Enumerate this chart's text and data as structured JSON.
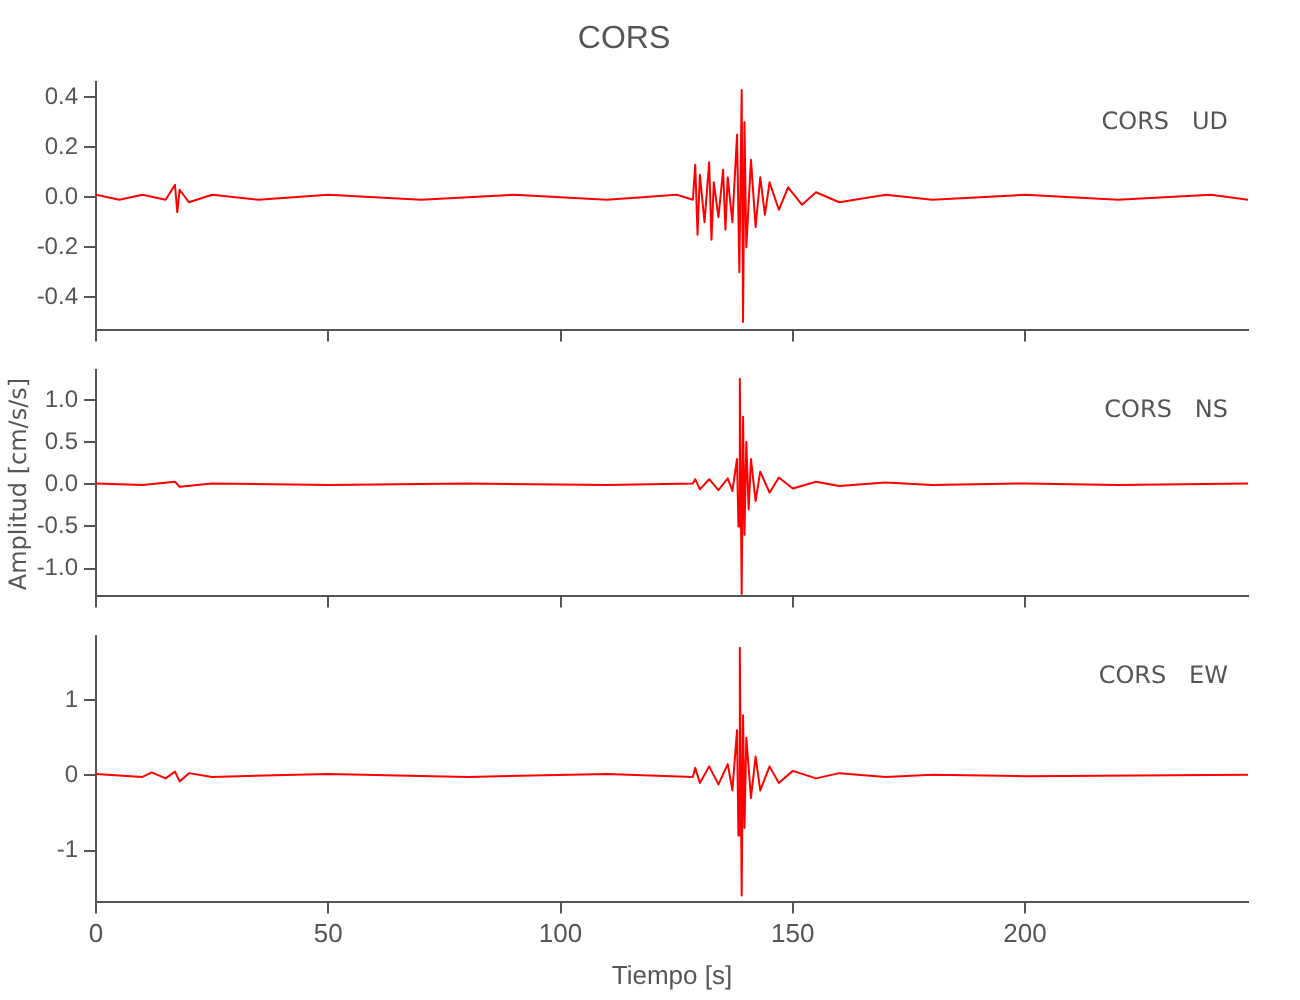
{
  "chart_data": [
    {
      "type": "line",
      "title": "CORS",
      "annotations": [
        "CORS   UD"
      ],
      "xlim": [
        0,
        248
      ],
      "xticks": [
        0,
        50,
        100,
        150,
        200
      ],
      "ylim": [
        -0.53,
        0.46
      ],
      "yticks": [
        0.4,
        0.2,
        {
          "value": 0,
          "label": "0.0"
        },
        -0.2,
        -0.4
      ],
      "tick_labels": "y",
      "grid": false,
      "legend": false,
      "series": [
        {
          "color": "#ff0000",
          "x": [
            0,
            5,
            10,
            15,
            17,
            17.5,
            18,
            20,
            25,
            35,
            50,
            70,
            90,
            110,
            125,
            128.5,
            129,
            129.5,
            130,
            131,
            132,
            132.5,
            133,
            134,
            135,
            135.5,
            136,
            137,
            138,
            138.5,
            139,
            139.3,
            139.6,
            140,
            141,
            142,
            143,
            144,
            145,
            147,
            149,
            152,
            155,
            160,
            170,
            180,
            200,
            220,
            240,
            248
          ],
          "values": [
            0.01,
            -0.01,
            0.01,
            -0.01,
            0.05,
            -0.06,
            0.03,
            -0.02,
            0.01,
            -0.01,
            0.01,
            -0.01,
            0.01,
            -0.01,
            0.01,
            -0.01,
            0.13,
            -0.15,
            0.09,
            -0.1,
            0.14,
            -0.17,
            0.06,
            -0.08,
            0.11,
            -0.13,
            0.08,
            -0.1,
            0.25,
            -0.3,
            0.43,
            -0.5,
            0.3,
            -0.2,
            0.15,
            -0.12,
            0.08,
            -0.07,
            0.06,
            -0.05,
            0.04,
            -0.03,
            0.02,
            -0.02,
            0.01,
            -0.01,
            0.01,
            -0.01,
            0.01,
            -0.01
          ]
        }
      ]
    },
    {
      "type": "line",
      "ylabel": "Amplitud [cm/s/s]",
      "annotations": [
        "CORS   NS"
      ],
      "xlim": [
        0,
        248
      ],
      "xticks": [
        0,
        50,
        100,
        150,
        200
      ],
      "ylim": [
        -1.32,
        1.35
      ],
      "yticks": [
        {
          "value": 1,
          "label": "1.0"
        },
        0.5,
        {
          "value": 0,
          "label": "0.0"
        },
        -0.5,
        {
          "value": -1,
          "label": "-1.0"
        }
      ],
      "tick_labels": "y",
      "grid": false,
      "legend": false,
      "series": [
        {
          "color": "#ff0000",
          "x": [
            0,
            10,
            17,
            18,
            25,
            50,
            80,
            110,
            128.5,
            129,
            130,
            132,
            134,
            136,
            137,
            138,
            138.3,
            138.6,
            139,
            139.3,
            139.6,
            140,
            140.5,
            141,
            142,
            143,
            145,
            147,
            150,
            155,
            160,
            170,
            180,
            200,
            220,
            248
          ],
          "values": [
            0.01,
            -0.01,
            0.03,
            -0.03,
            0.01,
            -0.01,
            0.01,
            -0.01,
            0.01,
            0.06,
            -0.06,
            0.06,
            -0.07,
            0.07,
            -0.08,
            0.3,
            -0.5,
            1.25,
            -1.3,
            0.8,
            -0.6,
            0.5,
            -0.3,
            0.3,
            -0.2,
            0.15,
            -0.1,
            0.08,
            -0.05,
            0.03,
            -0.02,
            0.02,
            -0.01,
            0.01,
            -0.01,
            0.01
          ]
        }
      ]
    },
    {
      "type": "line",
      "xlabel": "Tiempo [s]",
      "annotations": [
        "CORS   EW"
      ],
      "xlim": [
        0,
        248
      ],
      "xticks": [
        0,
        50,
        100,
        150,
        200
      ],
      "ylim": [
        -1.68,
        1.85
      ],
      "yticks": [
        1,
        0,
        -1
      ],
      "grid": false,
      "legend": false,
      "series": [
        {
          "color": "#ff0000",
          "x": [
            0,
            10,
            12,
            15,
            17,
            18,
            20,
            25,
            50,
            80,
            110,
            128.5,
            129,
            130,
            132,
            134,
            136,
            137,
            138,
            138.3,
            138.6,
            139,
            139.3,
            139.6,
            140,
            141,
            142,
            143,
            145,
            147,
            150,
            155,
            160,
            170,
            180,
            200,
            248
          ],
          "values": [
            0.02,
            -0.02,
            0.04,
            -0.04,
            0.05,
            -0.08,
            0.03,
            -0.02,
            0.02,
            -0.02,
            0.02,
            -0.02,
            0.1,
            -0.1,
            0.12,
            -0.12,
            0.15,
            -0.2,
            0.6,
            -0.8,
            1.7,
            -1.6,
            0.8,
            -0.7,
            0.5,
            -0.3,
            0.25,
            -0.2,
            0.12,
            -0.1,
            0.06,
            -0.04,
            0.03,
            -0.02,
            0.01,
            -0.01,
            0.01
          ]
        }
      ]
    }
  ]
}
